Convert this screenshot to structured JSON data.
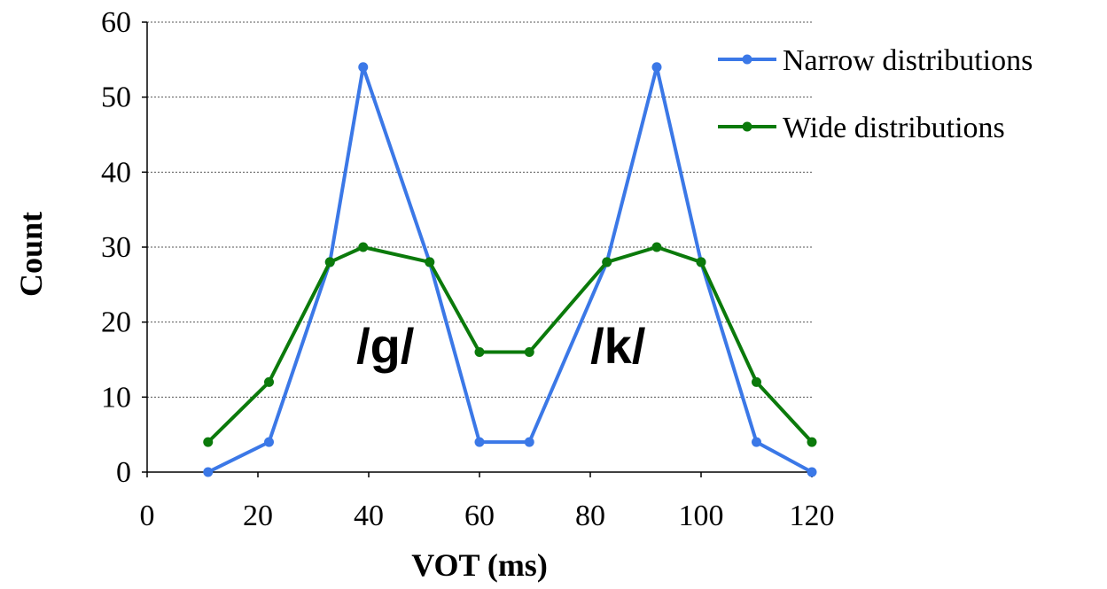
{
  "chart_data": {
    "type": "line",
    "xlabel": "VOT (ms)",
    "ylabel": "Count",
    "xlim": [
      0,
      120
    ],
    "ylim": [
      0,
      60
    ],
    "xticks": [
      0,
      20,
      40,
      60,
      80,
      100,
      120
    ],
    "yticks": [
      0,
      10,
      20,
      30,
      40,
      50,
      60
    ],
    "grid": "horizontal dotted",
    "legend": "top-right",
    "annotations": [
      "/g/",
      "/k/"
    ],
    "series": [
      {
        "name": "Narrow distributions",
        "color": "#3b78e7",
        "x": [
          11,
          22,
          33,
          39,
          51,
          60,
          69,
          83,
          92,
          100,
          110,
          120
        ],
        "y": [
          0,
          4,
          28,
          54,
          28,
          4,
          4,
          28,
          54,
          28,
          4,
          0
        ]
      },
      {
        "name": "Wide distributions",
        "color": "#0b7a0b",
        "x": [
          11,
          22,
          33,
          39,
          51,
          60,
          69,
          83,
          92,
          100,
          110,
          120
        ],
        "y": [
          4,
          12,
          28,
          30,
          28,
          16,
          16,
          28,
          30,
          28,
          12,
          4
        ]
      }
    ]
  }
}
